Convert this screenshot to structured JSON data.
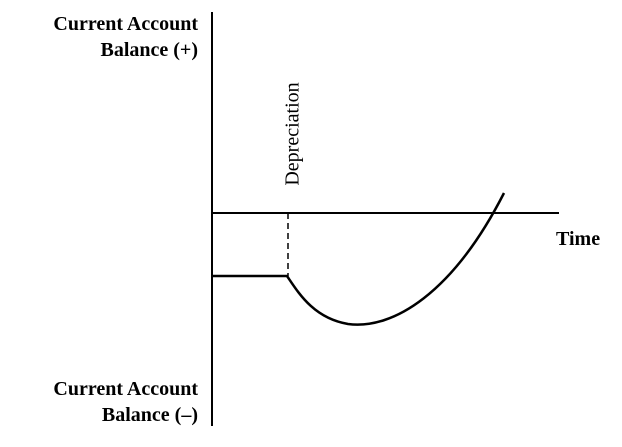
{
  "labels": {
    "y_top": [
      "Current Account",
      "Balance (+)"
    ],
    "y_bottom": [
      "Current Account",
      "Balance (–)"
    ],
    "x_axis": "Time",
    "event": "Depreciation"
  },
  "colors": {
    "ink": "#000000",
    "background": "#ffffff"
  }
}
